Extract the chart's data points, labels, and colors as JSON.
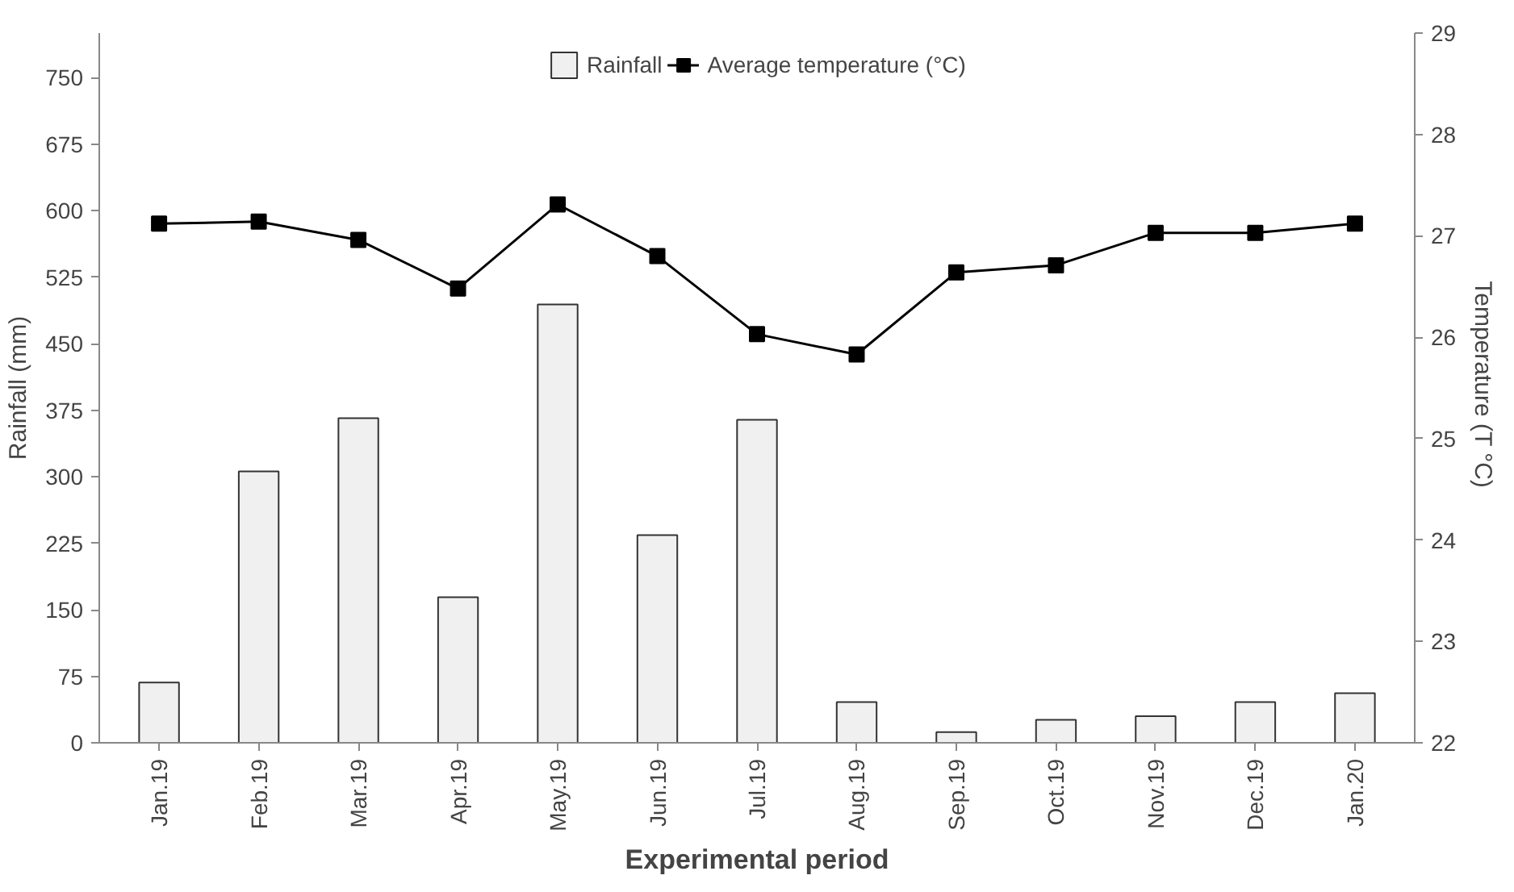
{
  "chart_data": {
    "type": "bar",
    "xlabel": "Experimental period",
    "ylabel": "Rainfall (mm)",
    "y2label": "Temperature  (T °C)",
    "categories": [
      "Jan.19",
      "Feb.19",
      "Mar.19",
      "Apr.19",
      "May.19",
      "Jun.19",
      "Jul.19",
      "Aug.19",
      "Sep.19",
      "Oct.19",
      "Nov.19",
      "Dec.19",
      "Jan.20"
    ],
    "series": [
      {
        "name": "Rainfall",
        "color": "#f0f0f0",
        "values": [
          68,
          306,
          366,
          164,
          494,
          234,
          364,
          46,
          12,
          26,
          30,
          46,
          56
        ]
      },
      {
        "name": "Average temperature (°C)",
        "type": "line",
        "axis": "y2",
        "color": "#000000",
        "marker": "square",
        "values": [
          27.12,
          27.14,
          26.96,
          26.48,
          27.31,
          26.8,
          26.03,
          25.83,
          26.64,
          26.71,
          27.03,
          27.03,
          27.12
        ]
      }
    ],
    "ylim": [
      0,
      800
    ],
    "yticks": [
      0,
      75,
      150,
      225,
      300,
      375,
      450,
      525,
      600,
      675,
      750
    ],
    "y2lim": [
      22,
      29
    ],
    "y2ticks": [
      22,
      23,
      24,
      25,
      26,
      27,
      28,
      29
    ],
    "grid": false,
    "legend": "top"
  }
}
